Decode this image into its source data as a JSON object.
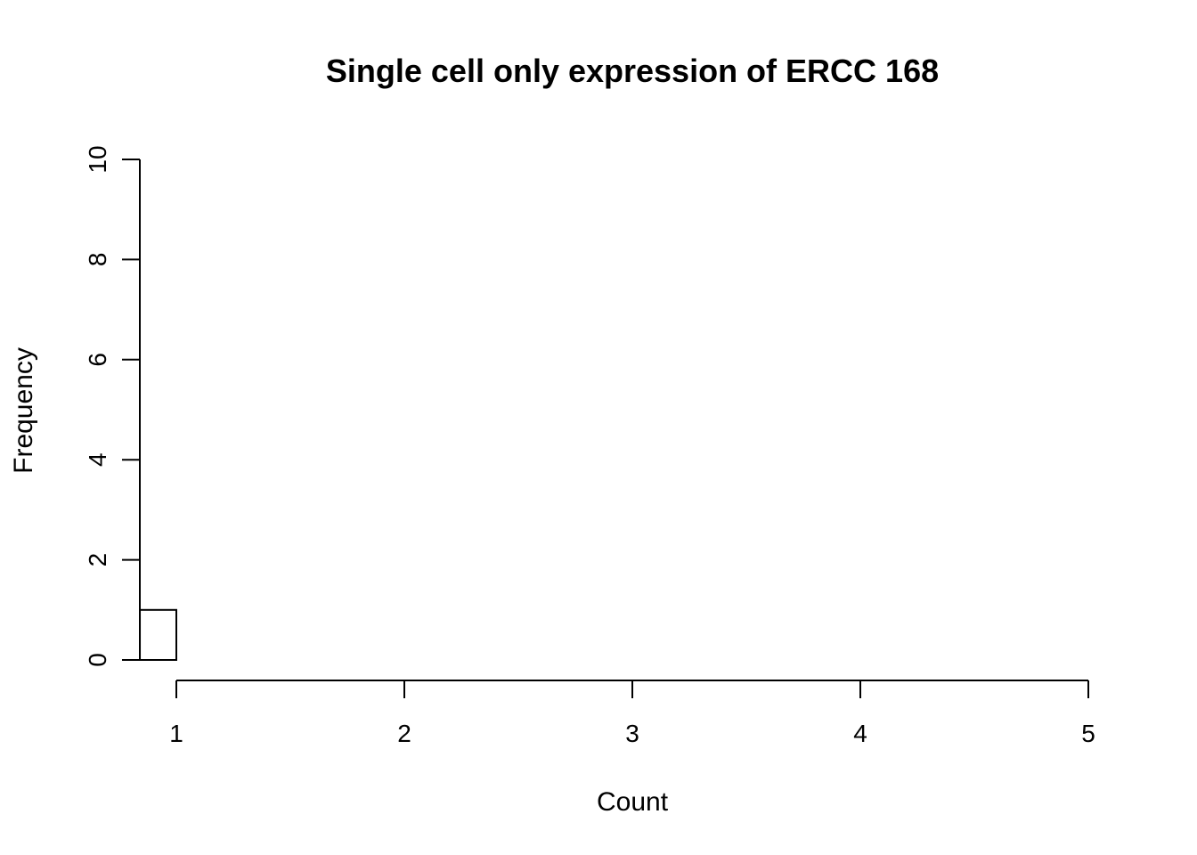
{
  "chart_data": {
    "type": "bar",
    "title": "Single cell only expression of ERCC 168",
    "xlabel": "Count",
    "ylabel": "Frequency",
    "xlim": [
      1,
      5
    ],
    "ylim": [
      0,
      10
    ],
    "x_ticks": [
      1,
      2,
      3,
      4,
      5
    ],
    "y_ticks": [
      0,
      2,
      4,
      6,
      8,
      10
    ],
    "bins": [
      {
        "start": 0.84,
        "end": 1.0,
        "count": 1
      }
    ],
    "grid": false,
    "legend": "none",
    "bar_fill": "#ffffff",
    "bar_stroke": "#000000"
  }
}
